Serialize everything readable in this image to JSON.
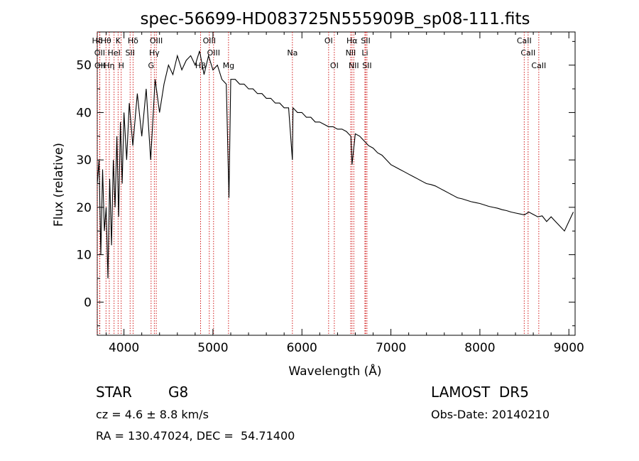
{
  "chart_data": {
    "type": "line",
    "title": "spec-56699-HD083725N555909B_sp08-111.fits",
    "xlabel": "Wavelength (Å)",
    "ylabel": "Flux (relative)",
    "xlim": [
      3700,
      9070
    ],
    "ylim": [
      -7,
      57
    ],
    "xticks": [
      4000,
      5000,
      6000,
      7000,
      8000,
      9000
    ],
    "yticks": [
      0,
      10,
      20,
      30,
      40,
      50
    ],
    "grid": false,
    "line_color": "#000000",
    "marker_color": "#cc0000",
    "series": [
      {
        "x": [
          3700,
          3720,
          3740,
          3760,
          3780,
          3800,
          3820,
          3840,
          3860,
          3880,
          3900,
          3920,
          3940,
          3960,
          3980,
          4000,
          4030,
          4060,
          4100,
          4150,
          4200,
          4250,
          4300,
          4350,
          4400,
          4450,
          4500,
          4550,
          4600,
          4650,
          4700,
          4750,
          4800,
          4850,
          4900,
          4950,
          5000,
          5050,
          5100,
          5150,
          5180,
          5200,
          5250,
          5300,
          5350,
          5400,
          5450,
          5500,
          5550,
          5600,
          5650,
          5700,
          5750,
          5800,
          5850,
          5893,
          5900,
          5950,
          6000,
          6050,
          6100,
          6150,
          6200,
          6250,
          6300,
          6350,
          6400,
          6450,
          6500,
          6550,
          6563,
          6600,
          6650,
          6700,
          6750,
          6800,
          6850,
          6900,
          6950,
          7000,
          7050,
          7100,
          7150,
          7200,
          7250,
          7300,
          7350,
          7400,
          7450,
          7500,
          7550,
          7600,
          7650,
          7700,
          7750,
          7800,
          7850,
          7900,
          7950,
          8000,
          8050,
          8100,
          8150,
          8200,
          8250,
          8300,
          8350,
          8400,
          8450,
          8500,
          8550,
          8600,
          8650,
          8700,
          8750,
          8800,
          8850,
          8900,
          8950,
          9000,
          9050
        ],
        "y": [
          25,
          30,
          10,
          28,
          15,
          20,
          5,
          26,
          12,
          30,
          20,
          35,
          18,
          38,
          25,
          40,
          30,
          42,
          33,
          44,
          35,
          45,
          30,
          47,
          40,
          46,
          50,
          48,
          52,
          49,
          51,
          52,
          50,
          53,
          48,
          52,
          49,
          50,
          47,
          46,
          22,
          47,
          47,
          46,
          46,
          45,
          45,
          44,
          44,
          43,
          43,
          42,
          42,
          41,
          41,
          30,
          41,
          40,
          40,
          39,
          39,
          38,
          38,
          37.5,
          37,
          37,
          36.5,
          36.5,
          36,
          35,
          29,
          35.5,
          35,
          34,
          33,
          32.5,
          31.5,
          31,
          30,
          29,
          28.5,
          28,
          27.5,
          27,
          26.5,
          26,
          25.5,
          25,
          24.8,
          24.5,
          24,
          23.5,
          23,
          22.5,
          22,
          21.8,
          21.5,
          21.2,
          21,
          20.8,
          20.5,
          20.2,
          20,
          19.8,
          19.5,
          19.3,
          19,
          18.8,
          18.6,
          18.4,
          19,
          18.5,
          18,
          18.2,
          17,
          18,
          17,
          16,
          15,
          17,
          19
        ]
      }
    ],
    "line_markers": [
      {
        "label": "Hδ",
        "x": 3700,
        "row": 1
      },
      {
        "label": "OII",
        "x": 3727,
        "row": 2
      },
      {
        "label": "OII",
        "x": 3729,
        "row": 3
      },
      {
        "label": "Hθ",
        "x": 3798,
        "row": 1
      },
      {
        "label": "Hη",
        "x": 3835,
        "row": 3
      },
      {
        "label": "HeI",
        "x": 3889,
        "row": 2
      },
      {
        "label": "K",
        "x": 3934,
        "row": 1
      },
      {
        "label": "H",
        "x": 3969,
        "row": 3
      },
      {
        "label": "SII",
        "x": 4069,
        "row": 2
      },
      {
        "label": "Hδ",
        "x": 4102,
        "row": 1
      },
      {
        "label": "Hγ",
        "x": 4341,
        "row": 2
      },
      {
        "label": "G",
        "x": 4305,
        "row": 3
      },
      {
        "label": "OIII",
        "x": 4363,
        "row": 1
      },
      {
        "label": "Hβ",
        "x": 4861,
        "row": 3
      },
      {
        "label": "OIII",
        "x": 4959,
        "row": 1
      },
      {
        "label": "OIII",
        "x": 5007,
        "row": 2
      },
      {
        "label": "Mg",
        "x": 5175,
        "row": 3
      },
      {
        "label": "Na",
        "x": 5893,
        "row": 2
      },
      {
        "label": "OI",
        "x": 6300,
        "row": 1
      },
      {
        "label": "OI",
        "x": 6364,
        "row": 3
      },
      {
        "label": "Hα",
        "x": 6563,
        "row": 1
      },
      {
        "label": "NII",
        "x": 6548,
        "row": 2
      },
      {
        "label": "NII",
        "x": 6583,
        "row": 3
      },
      {
        "label": "SII",
        "x": 6716,
        "row": 1
      },
      {
        "label": "Li",
        "x": 6708,
        "row": 2
      },
      {
        "label": "SII",
        "x": 6731,
        "row": 3
      },
      {
        "label": "CaII",
        "x": 8498,
        "row": 1
      },
      {
        "label": "CaII",
        "x": 8542,
        "row": 2
      },
      {
        "label": "CaII",
        "x": 8662,
        "row": 3
      }
    ]
  },
  "info": {
    "object_class": "STAR",
    "subclass": "G8",
    "survey": "LAMOST  DR5",
    "cz": "cz = 4.6 ± 8.8 km/s",
    "obs_date": "Obs-Date: 20140210",
    "coords": "RA = 130.47024, DEC =  54.71400"
  }
}
